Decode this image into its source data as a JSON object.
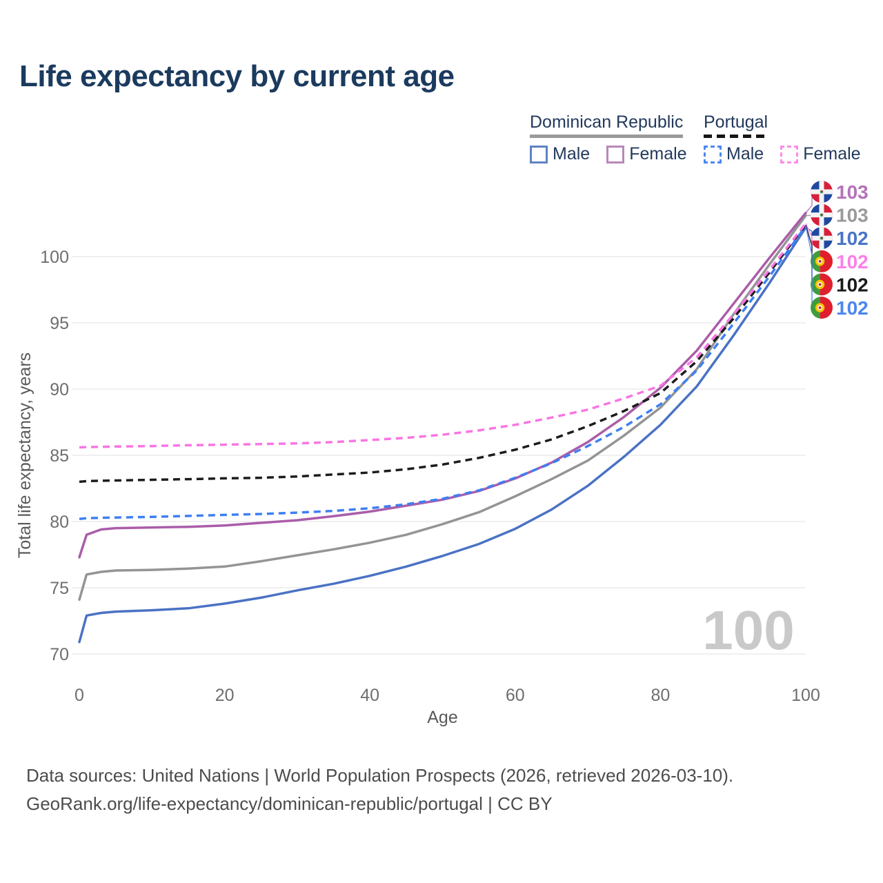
{
  "title": "Life expectancy by current age",
  "legend": {
    "groups": [
      {
        "label": "Dominican Republic",
        "line_style": "solid",
        "line_color": "#9a9a9a",
        "items": [
          {
            "label": "Male",
            "swatch_color": "#5d83c4",
            "swatch_style": "solid"
          },
          {
            "label": "Female",
            "swatch_color": "#b688b9",
            "swatch_style": "solid"
          }
        ]
      },
      {
        "label": "Portugal",
        "line_style": "dashed",
        "line_color": "#161616",
        "items": [
          {
            "label": "Male",
            "swatch_color": "#4c87f2",
            "swatch_style": "dashed"
          },
          {
            "label": "Female",
            "swatch_color": "#fb8bea",
            "swatch_style": "dashed"
          }
        ]
      }
    ]
  },
  "chart_data": {
    "type": "line",
    "title": "Life expectancy by current age",
    "xlabel": "Age",
    "ylabel": "Total life expectancy, years",
    "xlim": [
      0,
      100
    ],
    "ylim": [
      68.5,
      104.5
    ],
    "xticks": [
      0,
      20,
      40,
      60,
      80,
      100
    ],
    "yticks": [
      70,
      75,
      80,
      85,
      90,
      95,
      100
    ],
    "grid": true,
    "hover_age_watermark": "100",
    "x": [
      0,
      1,
      3,
      5,
      10,
      15,
      20,
      25,
      30,
      35,
      40,
      45,
      50,
      55,
      60,
      65,
      70,
      75,
      80,
      85,
      90,
      95,
      100
    ],
    "series": [
      {
        "key": "dr_total",
        "name": "Dominican Republic — Total",
        "country": "Dominican Republic",
        "sex": "total",
        "color": "#949494",
        "dashed": false,
        "end_value_label": "103",
        "values": [
          74.1,
          76.0,
          76.2,
          76.3,
          76.35,
          76.45,
          76.6,
          77.0,
          77.45,
          77.9,
          78.4,
          79.0,
          79.8,
          80.7,
          81.9,
          83.2,
          84.6,
          86.5,
          88.6,
          91.5,
          95.6,
          99.4,
          103.1
        ]
      },
      {
        "key": "dr_male",
        "name": "Dominican Republic — Male",
        "country": "Dominican Republic",
        "sex": "male",
        "color": "#4a72c4",
        "dashed": false,
        "end_value_label": "102",
        "values": [
          70.9,
          72.9,
          73.1,
          73.2,
          73.3,
          73.45,
          73.8,
          74.25,
          74.8,
          75.3,
          75.9,
          76.6,
          77.4,
          78.3,
          79.45,
          80.9,
          82.7,
          84.9,
          87.3,
          90.2,
          94.0,
          98.0,
          102.2
        ]
      },
      {
        "key": "dr_female",
        "name": "Dominican Republic — Female",
        "country": "Dominican Republic",
        "sex": "female",
        "color": "#aa5da9",
        "dashed": false,
        "end_value_label": "103",
        "values": [
          77.3,
          79.0,
          79.4,
          79.5,
          79.55,
          79.6,
          79.7,
          79.9,
          80.1,
          80.4,
          80.75,
          81.2,
          81.65,
          82.3,
          83.25,
          84.45,
          86.0,
          87.9,
          90.1,
          92.9,
          96.4,
          99.9,
          103.3
        ]
      },
      {
        "key": "pt_total",
        "name": "Portugal — Total",
        "country": "Portugal",
        "sex": "total",
        "color": "#1c1c1c",
        "dashed": true,
        "end_value_label": "102",
        "values": [
          83.0,
          83.05,
          83.08,
          83.1,
          83.15,
          83.2,
          83.26,
          83.3,
          83.4,
          83.55,
          83.7,
          83.95,
          84.3,
          84.8,
          85.42,
          86.2,
          87.2,
          88.35,
          89.7,
          92.1,
          95.3,
          98.8,
          102.4
        ]
      },
      {
        "key": "pt_female",
        "name": "Portugal — Female",
        "country": "Portugal",
        "sex": "female",
        "color": "#f975e3",
        "dashed": true,
        "end_value_label": "102",
        "values": [
          85.6,
          85.62,
          85.64,
          85.66,
          85.7,
          85.76,
          85.8,
          85.85,
          85.9,
          86.0,
          86.15,
          86.32,
          86.55,
          86.88,
          87.3,
          87.85,
          88.45,
          89.3,
          90.25,
          92.4,
          95.6,
          99.0,
          102.5
        ]
      },
      {
        "key": "pt_male",
        "name": "Portugal — Male",
        "country": "Portugal",
        "sex": "male",
        "color": "#3e7ff2",
        "dashed": true,
        "end_value_label": "102",
        "values": [
          80.2,
          80.25,
          80.28,
          80.3,
          80.35,
          80.42,
          80.5,
          80.57,
          80.67,
          80.8,
          81.0,
          81.3,
          81.72,
          82.35,
          83.3,
          84.4,
          85.7,
          87.15,
          88.85,
          91.4,
          94.9,
          98.5,
          102.3
        ]
      }
    ],
    "end_labels": [
      {
        "series_key": "dr_female",
        "flag": "do",
        "value": "103",
        "color": "#b472b8"
      },
      {
        "series_key": "dr_total",
        "flag": "do",
        "value": "103",
        "color": "#9a9a9a"
      },
      {
        "series_key": "dr_male",
        "flag": "do",
        "value": "102",
        "color": "#4a74c8"
      },
      {
        "series_key": "pt_female",
        "flag": "pt",
        "value": "102",
        "color": "#fb80e8"
      },
      {
        "series_key": "pt_total",
        "flag": "pt",
        "value": "102",
        "color": "#1a1a1a"
      },
      {
        "series_key": "pt_male",
        "flag": "pt",
        "value": "102",
        "color": "#4b86f0"
      }
    ]
  },
  "footer": {
    "line1": "Data sources: United Nations | World Population Prospects (2026, retrieved 2026-03-10).",
    "line2": "GeoRank.org/life-expectancy/dominican-republic/portugal | CC BY"
  }
}
